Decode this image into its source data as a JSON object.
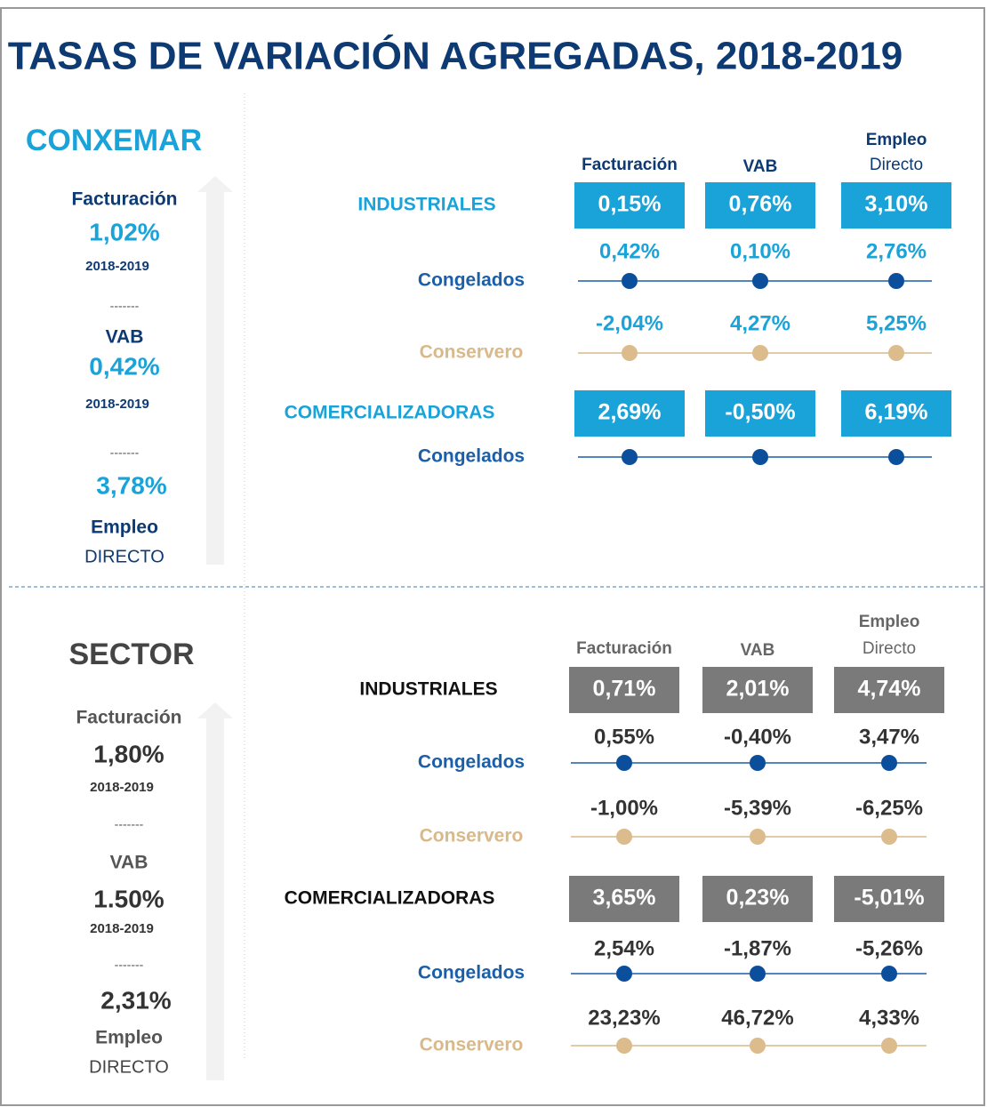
{
  "title": "TASAS DE VARIACIÓN AGREGADAS, 2018-2019",
  "sections": [
    {
      "name": "CONXEMAR",
      "separator": "-------",
      "summary": [
        {
          "label": "Facturación",
          "value": "1,02%",
          "period": "2018-2019"
        },
        {
          "label": "VAB",
          "value": "0,42%",
          "period": "2018-2019"
        },
        {
          "value": "3,78%",
          "label": "Empleo",
          "sublabel": "DIRECTO"
        }
      ],
      "columns": [
        {
          "label": "Facturación"
        },
        {
          "label": "VAB"
        },
        {
          "label": "Empleo",
          "sublabel": "Directo"
        }
      ],
      "groups": [
        {
          "name": "INDUSTRIALES",
          "totals": [
            "0,15%",
            "0,76%",
            "3,10%"
          ],
          "rows": [
            {
              "name": "Congelados",
              "values": [
                "0,42%",
                "0,10%",
                "2,76%"
              ]
            },
            {
              "name": "Conservero",
              "values": [
                "-2,04%",
                "4,27%",
                "5,25%"
              ]
            }
          ]
        },
        {
          "name": "COMERCIALIZADORAS",
          "totals": [
            "2,69%",
            "-0,50%",
            "6,19%"
          ],
          "rows": [
            {
              "name": "Congelados"
            }
          ]
        }
      ]
    },
    {
      "name": "SECTOR",
      "separator": "-------",
      "summary": [
        {
          "label": "Facturación",
          "value": "1,80%",
          "period": "2018-2019"
        },
        {
          "label": "VAB",
          "value": "1.50%",
          "period": "2018-2019"
        },
        {
          "value": "2,31%",
          "label": "Empleo",
          "sublabel": "DIRECTO"
        }
      ],
      "columns": [
        {
          "label": "Facturación"
        },
        {
          "label": "VAB"
        },
        {
          "label": "Empleo",
          "sublabel": "Directo"
        }
      ],
      "groups": [
        {
          "name": "INDUSTRIALES",
          "totals": [
            "0,71%",
            "2,01%",
            "4,74%"
          ],
          "rows": [
            {
              "name": "Congelados",
              "values": [
                "0,55%",
                "-0,40%",
                "3,47%"
              ]
            },
            {
              "name": "Conservero",
              "values": [
                "-1,00%",
                "-5,39%",
                "-6,25%"
              ]
            }
          ]
        },
        {
          "name": "COMERCIALIZADORAS",
          "totals": [
            "3,65%",
            "0,23%",
            "-5,01%"
          ],
          "rows": [
            {
              "name": "Congelados",
              "values": [
                "2,54%",
                "-1,87%",
                "-5,26%"
              ]
            },
            {
              "name": "Conservero",
              "values": [
                "23,23%",
                "46,72%",
                "4,33%"
              ]
            }
          ]
        }
      ]
    }
  ]
}
